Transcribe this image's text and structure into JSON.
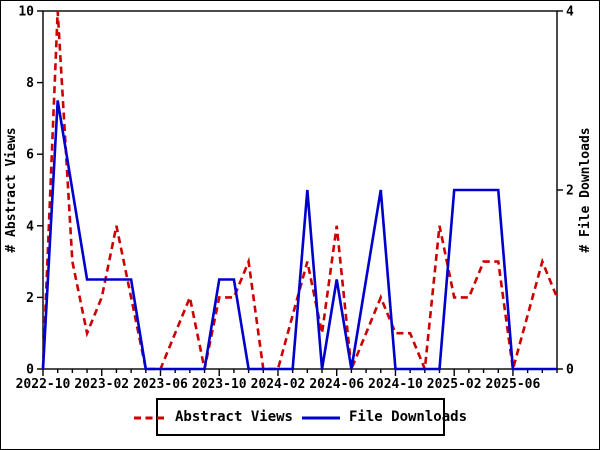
{
  "chart_data": {
    "type": "line",
    "title": "",
    "x": {
      "months": [
        "2022-10",
        "2022-11",
        "2022-12",
        "2023-01",
        "2023-02",
        "2023-03",
        "2023-04",
        "2023-05",
        "2023-06",
        "2023-07",
        "2023-08",
        "2023-09",
        "2023-10",
        "2023-11",
        "2023-12",
        "2024-01",
        "2024-02",
        "2024-03",
        "2024-04",
        "2024-05",
        "2024-06",
        "2024-07",
        "2024-08",
        "2024-09",
        "2024-10",
        "2024-11",
        "2024-12",
        "2025-01",
        "2025-02",
        "2025-03",
        "2025-04",
        "2025-05",
        "2025-06",
        "2025-07",
        "2025-08",
        "2025-09"
      ],
      "tick_labels": [
        "2022-10",
        "2023-02",
        "2023-06",
        "2023-10",
        "2024-02",
        "2024-06",
        "2024-10",
        "2025-02",
        "2025-06"
      ],
      "tick_label_indices": [
        0,
        4,
        8,
        12,
        16,
        20,
        24,
        28,
        32
      ]
    },
    "left_axis": {
      "label": "# Abstract Views",
      "range": [
        0,
        10
      ],
      "ticks": [
        0,
        2,
        4,
        6,
        8,
        10
      ]
    },
    "right_axis": {
      "label": "# File Downloads",
      "range": [
        0,
        4
      ],
      "ticks": [
        0,
        2,
        4
      ]
    },
    "series": [
      {
        "name": "Abstract Views",
        "axis": "left",
        "color": "#cc0000",
        "line_style": "dashed",
        "values": [
          0,
          10,
          3,
          1,
          2,
          4,
          2,
          0,
          0,
          1,
          2,
          0,
          2,
          2,
          3,
          0,
          0,
          1.5,
          3,
          1,
          4,
          0,
          1,
          2,
          1,
          1,
          0,
          4,
          2,
          2,
          3,
          3,
          0,
          1.5,
          3,
          2
        ]
      },
      {
        "name": "File Downloads",
        "axis": "right",
        "color": "#0000cc",
        "line_style": "solid",
        "values": [
          0,
          3,
          2,
          1,
          1,
          1,
          1,
          0,
          0,
          0,
          0,
          0,
          1,
          1,
          0,
          0,
          0,
          0,
          2,
          0,
          1,
          0,
          1,
          2,
          0,
          0,
          0,
          0,
          2,
          2,
          2,
          2,
          0,
          0,
          0,
          0
        ]
      }
    ],
    "legend": {
      "position": "bottom-center",
      "entries": [
        "Abstract Views",
        "File Downloads"
      ]
    },
    "grid": false,
    "colors": {
      "abstract_views": "#cc0000",
      "file_downloads": "#0000cc",
      "axis": "#000000",
      "background": "#ffffff"
    }
  }
}
